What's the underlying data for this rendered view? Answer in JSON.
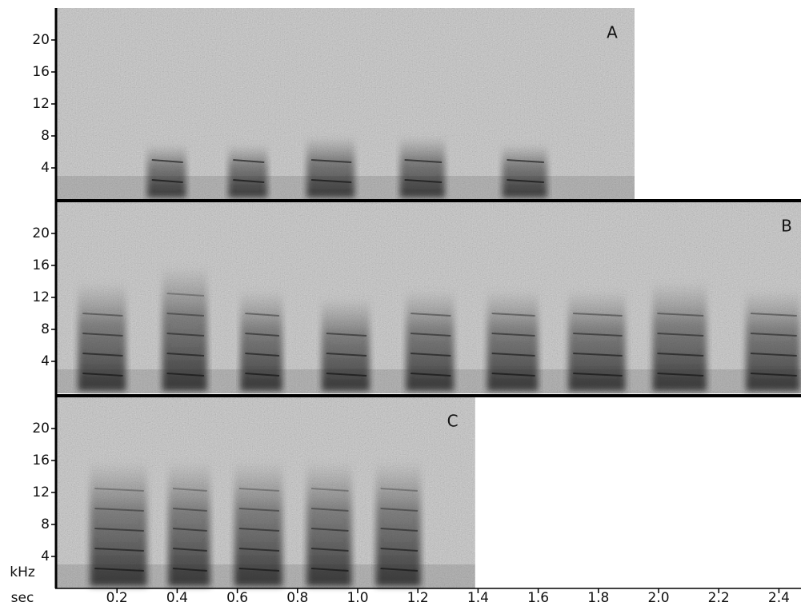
{
  "chart_data": [
    {
      "type": "spectrogram",
      "label": "A",
      "xlim": [
        0,
        1.92
      ],
      "ylim": [
        0,
        24
      ],
      "yticks": [
        4,
        8,
        12,
        16,
        20
      ],
      "syllables": [
        {
          "start": 0.3,
          "end": 0.43,
          "max_khz": 7
        },
        {
          "start": 0.57,
          "end": 0.7,
          "max_khz": 7
        },
        {
          "start": 0.83,
          "end": 0.99,
          "max_khz": 8
        },
        {
          "start": 1.14,
          "end": 1.29,
          "max_khz": 8
        },
        {
          "start": 1.48,
          "end": 1.63,
          "max_khz": 7
        }
      ]
    },
    {
      "type": "spectrogram",
      "label": "B",
      "xlim": [
        0,
        2.5
      ],
      "ylim": [
        0,
        24
      ],
      "yticks": [
        4,
        8,
        12,
        16,
        20
      ],
      "syllables": [
        {
          "start": 0.07,
          "end": 0.23,
          "max_khz": 14
        },
        {
          "start": 0.35,
          "end": 0.5,
          "max_khz": 16
        },
        {
          "start": 0.61,
          "end": 0.75,
          "max_khz": 13
        },
        {
          "start": 0.88,
          "end": 1.04,
          "max_khz": 12
        },
        {
          "start": 1.16,
          "end": 1.32,
          "max_khz": 13
        },
        {
          "start": 1.43,
          "end": 1.6,
          "max_khz": 13
        },
        {
          "start": 1.7,
          "end": 1.89,
          "max_khz": 13
        },
        {
          "start": 1.98,
          "end": 2.16,
          "max_khz": 14
        },
        {
          "start": 2.29,
          "end": 2.47,
          "max_khz": 13
        }
      ]
    },
    {
      "type": "spectrogram",
      "label": "C",
      "xlim": [
        0,
        1.39
      ],
      "ylim": [
        0,
        24
      ],
      "yticks": [
        4,
        8,
        12,
        16,
        20
      ],
      "xlabel": "sec",
      "ylabel": "kHz",
      "xticks": [
        0.2,
        0.4,
        0.6,
        0.8,
        {
          "value": 1,
          "label": "1.0"
        },
        1.2,
        1.4,
        1.6,
        1.8,
        {
          "value": 2,
          "label": "2.0"
        },
        2.2,
        2.4
      ],
      "syllables": [
        {
          "start": 0.11,
          "end": 0.3,
          "max_khz": 16
        },
        {
          "start": 0.37,
          "end": 0.51,
          "max_khz": 16
        },
        {
          "start": 0.59,
          "end": 0.75,
          "max_khz": 16
        },
        {
          "start": 0.83,
          "end": 0.98,
          "max_khz": 16
        },
        {
          "start": 1.06,
          "end": 1.21,
          "max_khz": 16
        }
      ]
    }
  ]
}
